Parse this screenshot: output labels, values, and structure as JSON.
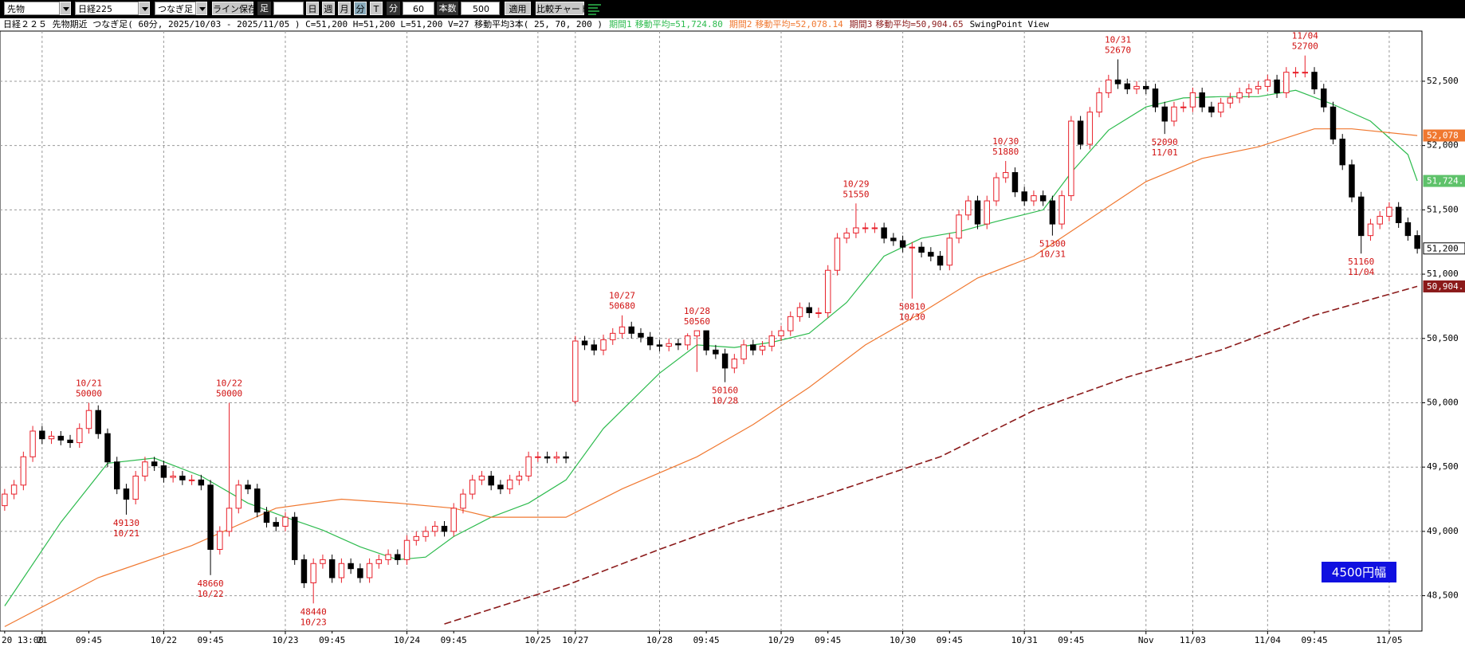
{
  "toolbar": {
    "market": "先物",
    "symbol": "日経225",
    "mode": "つなぎ足",
    "save": "ライン保存",
    "bar": "足",
    "periods": [
      "日",
      "週",
      "月",
      "分",
      "T"
    ],
    "unit": "分",
    "minutes": 60,
    "count_label": "本数",
    "count": 500,
    "apply": "適用",
    "compare": "比較チャート"
  },
  "chart_data": {
    "type": "candlestick",
    "title": "日経２２５ 先物期近 つなぎ足( 60分, 2025/10/03 - 2025/11/05 )  C=51,200 H=51,200 L=51,200 V=27  移動平均3本( 25, 70, 200 )",
    "subtitle": "SwingPoint View",
    "badge": "4500円幅",
    "up_color": "#e8202a",
    "down_color": "#000000",
    "grid": true,
    "xlim": [
      -0.5,
      151.5
    ],
    "ylim": [
      48225,
      52890
    ],
    "yticks": [
      {
        "value": 48500,
        "label": "48,500"
      },
      {
        "value": 49000,
        "label": "49,000"
      },
      {
        "value": 49500,
        "label": "49,500"
      },
      {
        "value": 50000,
        "label": "50,000"
      },
      {
        "value": 50500,
        "label": "50,500"
      },
      {
        "value": 51000,
        "label": "51,000"
      },
      {
        "value": 51500,
        "label": "51,500"
      },
      {
        "value": 52000,
        "label": "52,000"
      },
      {
        "value": 52500,
        "label": "52,500"
      }
    ],
    "xticks": [
      {
        "value": 4,
        "label": "21"
      },
      {
        "value": 17,
        "label": "10/22"
      },
      {
        "value": 30,
        "label": "10/23"
      },
      {
        "value": 43,
        "label": "10/24"
      },
      {
        "value": 57,
        "label": "10/25"
      },
      {
        "value": 61,
        "label": "10/27"
      },
      {
        "value": 70,
        "label": "10/28"
      },
      {
        "value": 83,
        "label": "10/29"
      },
      {
        "value": 96,
        "label": "10/30"
      },
      {
        "value": 109,
        "label": "10/31"
      },
      {
        "value": 122,
        "label": "Nov"
      },
      {
        "value": 127,
        "label": "11/03"
      },
      {
        "value": 135,
        "label": "11/04"
      },
      {
        "value": 148,
        "label": "11/05"
      }
    ],
    "xticks_minor": [
      {
        "value": 0,
        "label": "20 13:00"
      },
      {
        "value": 9,
        "label": "09:45"
      },
      {
        "value": 22,
        "label": "09:45"
      },
      {
        "value": 35,
        "label": "09:45"
      },
      {
        "value": 48,
        "label": "09:45"
      },
      {
        "value": 75,
        "label": "09:45"
      },
      {
        "value": 88,
        "label": "09:45"
      },
      {
        "value": 101,
        "label": "09:45"
      },
      {
        "value": 114,
        "label": "09:45"
      },
      {
        "value": 140,
        "label": "09:45"
      }
    ],
    "open": [
      49200,
      49290,
      49360,
      49580,
      49780,
      49720,
      49740,
      49710,
      49690,
      49800,
      49940,
      49760,
      49540,
      49330,
      49250,
      49430,
      49540,
      49510,
      49420,
      49430,
      49400,
      49400,
      49360,
      48860,
      49000,
      49180,
      49360,
      49330,
      49150,
      49070,
      49040,
      49110,
      48780,
      48600,
      48750,
      48780,
      48640,
      48750,
      48710,
      48640,
      48750,
      48780,
      48820,
      48780,
      48930,
      48960,
      49000,
      49040,
      49000,
      49180,
      49290,
      49400,
      49430,
      49360,
      49330,
      49400,
      49430,
      49580,
      49580,
      49570,
      49580,
      50010,
      50480,
      50450,
      50410,
      50490,
      50540,
      50590,
      50540,
      50510,
      50450,
      50440,
      50460,
      50450,
      50520,
      50560,
      50410,
      50380,
      50270,
      50340,
      50450,
      50410,
      50440,
      50520,
      50560,
      50670,
      50740,
      50700,
      50700,
      51030,
      51280,
      51320,
      51360,
      51360,
      51360,
      51280,
      51260,
      51210,
      51210,
      51170,
      51140,
      51070,
      51280,
      51460,
      51570,
      51390,
      51570,
      51750,
      51790,
      51640,
      51570,
      51610,
      51570,
      51390,
      51610,
      52190,
      52010,
      52260,
      52410,
      52510,
      52480,
      52440,
      52460,
      52440,
      52300,
      52190,
      52300,
      52300,
      52410,
      52300,
      52260,
      52330,
      52370,
      52410,
      52440,
      52460,
      52510,
      52410,
      52570,
      52570,
      52570,
      52440,
      52300,
      52050,
      51850,
      51600,
      51300,
      51390,
      51450,
      51520,
      51400,
      51300
    ],
    "high": [
      49330,
      49400,
      49620,
      49820,
      49820,
      49780,
      49780,
      49750,
      49840,
      50000,
      49980,
      49800,
      49580,
      49370,
      49470,
      49580,
      49580,
      49550,
      49470,
      49470,
      49440,
      49440,
      49400,
      49040,
      50000,
      49400,
      49400,
      49370,
      49190,
      49110,
      49150,
      49150,
      48820,
      48790,
      48820,
      48820,
      48790,
      48790,
      48750,
      48790,
      48820,
      48860,
      48860,
      48970,
      49000,
      49040,
      49080,
      49080,
      49220,
      49330,
      49440,
      49470,
      49470,
      49400,
      49440,
      49470,
      49620,
      49620,
      49620,
      49620,
      49620,
      50520,
      50520,
      50490,
      50530,
      50580,
      50680,
      50630,
      50580,
      50550,
      50490,
      50500,
      50500,
      50540,
      50560,
      50560,
      50450,
      50420,
      50380,
      50490,
      50490,
      50480,
      50560,
      50600,
      50710,
      50780,
      50780,
      50740,
      51070,
      51320,
      51360,
      51550,
      51400,
      51400,
      51400,
      51320,
      51300,
      51250,
      51250,
      51210,
      51180,
      51320,
      51500,
      51610,
      51610,
      51610,
      51790,
      51880,
      51830,
      51680,
      51650,
      51650,
      51610,
      51650,
      52230,
      52230,
      52300,
      52450,
      52550,
      52670,
      52520,
      52500,
      52500,
      52480,
      52340,
      52340,
      52340,
      52450,
      52450,
      52340,
      52370,
      52410,
      52450,
      52480,
      52500,
      52550,
      52550,
      52610,
      52610,
      52700,
      52610,
      52480,
      52340,
      52090,
      51890,
      51640,
      51430,
      51490,
      51560,
      51560,
      51440,
      51340
    ],
    "low": [
      49160,
      49250,
      49320,
      49540,
      49680,
      49680,
      49670,
      49650,
      49650,
      49760,
      49720,
      49500,
      49290,
      49130,
      49210,
      49390,
      49470,
      49380,
      49380,
      49360,
      49360,
      49320,
      48660,
      48820,
      48960,
      49140,
      49290,
      49110,
      49030,
      49000,
      49000,
      48740,
      48560,
      48440,
      48710,
      48600,
      48600,
      48670,
      48600,
      48600,
      48710,
      48740,
      48740,
      48740,
      48890,
      48920,
      48960,
      48960,
      48960,
      49140,
      49250,
      49360,
      49320,
      49290,
      49290,
      49360,
      49390,
      49540,
      49530,
      49530,
      49530,
      49990,
      50410,
      50370,
      50370,
      50450,
      50500,
      50500,
      50470,
      50410,
      50400,
      50400,
      50410,
      50410,
      50240,
      50370,
      50340,
      50160,
      50230,
      50300,
      50370,
      50370,
      50400,
      50480,
      50520,
      50630,
      50660,
      50660,
      50660,
      50990,
      51240,
      51280,
      51320,
      51320,
      51240,
      51220,
      51170,
      50810,
      51130,
      51100,
      51030,
      51030,
      51240,
      51420,
      51350,
      51350,
      51530,
      51710,
      51600,
      51530,
      51530,
      51530,
      51300,
      51350,
      51570,
      51970,
      51970,
      52220,
      52370,
      52440,
      52400,
      52400,
      52400,
      52260,
      52090,
      52150,
      52260,
      52260,
      52260,
      52220,
      52220,
      52290,
      52330,
      52370,
      52400,
      52420,
      52370,
      52370,
      52530,
      52530,
      52400,
      52260,
      52010,
      51810,
      51560,
      51160,
      51260,
      51350,
      51410,
      51360,
      51260,
      51160
    ],
    "close": [
      49290,
      49360,
      49580,
      49780,
      49720,
      49740,
      49710,
      49690,
      49800,
      49940,
      49760,
      49540,
      49330,
      49250,
      49430,
      49540,
      49510,
      49420,
      49430,
      49400,
      49400,
      49360,
      48860,
      49000,
      49180,
      49360,
      49330,
      49150,
      49070,
      49040,
      49110,
      48780,
      48600,
      48750,
      48780,
      48640,
      48750,
      48710,
      48640,
      48750,
      48780,
      48820,
      48780,
      48930,
      48960,
      49000,
      49040,
      49000,
      49180,
      49290,
      49400,
      49430,
      49360,
      49330,
      49400,
      49430,
      49580,
      49580,
      49570,
      49580,
      49570,
      50480,
      50450,
      50410,
      50490,
      50540,
      50590,
      50540,
      50510,
      50450,
      50440,
      50460,
      50450,
      50520,
      50560,
      50410,
      50380,
      50270,
      50340,
      50450,
      50410,
      50440,
      50520,
      50560,
      50670,
      50740,
      50700,
      50700,
      51030,
      51280,
      51320,
      51360,
      51360,
      51360,
      51280,
      51260,
      51210,
      51210,
      51170,
      51140,
      51070,
      51280,
      51460,
      51570,
      51390,
      51570,
      51750,
      51790,
      51640,
      51570,
      51610,
      51570,
      51390,
      51610,
      52190,
      52010,
      52260,
      52410,
      52510,
      52480,
      52440,
      52460,
      52440,
      52300,
      52190,
      52300,
      52300,
      52410,
      52300,
      52260,
      52330,
      52370,
      52410,
      52440,
      52460,
      52510,
      52410,
      52570,
      52570,
      52570,
      52440,
      52300,
      52050,
      51850,
      51600,
      51300,
      51390,
      51450,
      51520,
      51400,
      51300,
      51200
    ],
    "series": [
      {
        "name": "期間1",
        "label": "移動平均=51,724.80",
        "color": "#2dbb4e",
        "dash": false,
        "x": [
          0,
          6,
          11,
          16,
          21,
          26,
          30,
          34,
          38,
          42,
          45,
          48,
          52,
          56,
          60,
          64,
          70,
          74,
          78,
          82,
          86,
          90,
          94,
          98,
          102,
          106,
          111,
          114,
          118,
          122,
          126,
          130,
          134,
          138,
          142,
          146,
          150,
          151
        ],
        "values": [
          48420,
          49070,
          49530,
          49570,
          49430,
          49220,
          49110,
          49010,
          48880,
          48780,
          48800,
          48960,
          49110,
          49220,
          49400,
          49800,
          50230,
          50450,
          50430,
          50470,
          50540,
          50780,
          51140,
          51280,
          51330,
          51410,
          51500,
          51790,
          52120,
          52300,
          52370,
          52380,
          52380,
          52430,
          52320,
          52190,
          51930,
          51725
        ]
      },
      {
        "name": "期間2",
        "label": "移動平均=52,078.14",
        "color": "#f07830",
        "dash": false,
        "x": [
          0,
          10,
          20,
          29,
          36,
          42,
          48,
          52,
          60,
          66,
          74,
          80,
          86,
          92,
          98,
          104,
          110,
          116,
          122,
          128,
          134,
          140,
          144,
          151
        ],
        "values": [
          48260,
          48640,
          48890,
          49180,
          49250,
          49220,
          49180,
          49110,
          49110,
          49330,
          49580,
          49830,
          50120,
          50450,
          50700,
          50970,
          51140,
          51430,
          51720,
          51900,
          51990,
          52130,
          52130,
          52078
        ]
      },
      {
        "name": "期間3",
        "label": "移動平均=50,904.65",
        "color": "#8b1a1a",
        "dash": true,
        "x": [
          47,
          60,
          70,
          78,
          88,
          100,
          110,
          120,
          130,
          140,
          151
        ],
        "values": [
          48280,
          48580,
          48860,
          49070,
          49290,
          49580,
          49940,
          50200,
          50410,
          50680,
          50905
        ]
      }
    ],
    "price_tags": [
      {
        "value": 52078.14,
        "label": "52,078",
        "color": "#f07830"
      },
      {
        "value": 51724.8,
        "label": "51,724.",
        "color": "#5ec26a"
      },
      {
        "value": 51200,
        "label": "51,200",
        "color": "#ffffff"
      },
      {
        "value": 50904.65,
        "label": "50,904.",
        "color": "#8b1a1a"
      }
    ],
    "annotations": [
      {
        "index": 9,
        "date": "10/21",
        "price": 50000,
        "side": "above"
      },
      {
        "index": 13,
        "date": "10/21",
        "price": 49130,
        "side": "below"
      },
      {
        "index": 24,
        "date": "10/22",
        "price": 50000,
        "side": "above"
      },
      {
        "index": 22,
        "date": "10/22",
        "price": 48660,
        "side": "below"
      },
      {
        "index": 33,
        "date": "10/23",
        "price": 48440,
        "side": "below"
      },
      {
        "index": 66,
        "date": "10/27",
        "price": 50680,
        "side": "above"
      },
      {
        "index": 74,
        "date": "10/28",
        "price": 50560,
        "side": "above"
      },
      {
        "index": 77,
        "date": "10/28",
        "price": 50160,
        "side": "below"
      },
      {
        "index": 91,
        "date": "10/29",
        "price": 51550,
        "side": "above"
      },
      {
        "index": 97,
        "date": "10/30",
        "price": 50810,
        "side": "below"
      },
      {
        "index": 107,
        "date": "10/30",
        "price": 51880,
        "side": "above"
      },
      {
        "index": 112,
        "date": "10/31",
        "price": 51300,
        "side": "below"
      },
      {
        "index": 119,
        "date": "10/31",
        "price": 52670,
        "side": "above"
      },
      {
        "index": 124,
        "date": "11/01",
        "price": 52090,
        "side": "below"
      },
      {
        "index": 139,
        "date": "11/04",
        "price": 52700,
        "side": "above"
      },
      {
        "index": 145,
        "date": "11/04",
        "price": 51160,
        "side": "below"
      }
    ]
  }
}
